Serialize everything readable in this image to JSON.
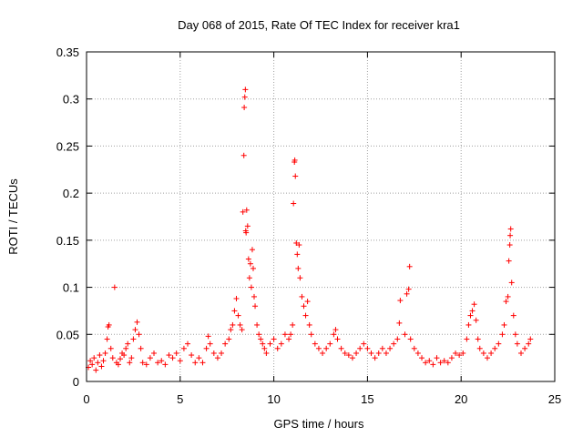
{
  "chart_data": {
    "type": "scatter",
    "title": "Day 068 of 2015, Rate Of TEC Index for receiver kra1",
    "xlabel": "GPS time / hours",
    "ylabel": "ROTI / TECUs",
    "xlim": [
      0,
      25
    ],
    "ylim": [
      0,
      0.35
    ],
    "xticks": [
      0,
      5,
      10,
      15,
      20,
      25
    ],
    "xtick_labels": [
      "0",
      "5",
      "10",
      "15",
      "20",
      "25"
    ],
    "yticks": [
      0,
      0.05,
      0.1,
      0.15,
      0.2,
      0.25,
      0.3,
      0.35
    ],
    "ytick_labels": [
      "0",
      "0.05",
      "0.1",
      "0.15",
      "0.2",
      "0.25",
      "0.3",
      "0.35"
    ],
    "grid": true,
    "marker": "+",
    "series_color": "#ff0000",
    "series": [
      {
        "name": "ROTI",
        "points": [
          [
            0.1,
            0.015
          ],
          [
            0.2,
            0.022
          ],
          [
            0.3,
            0.018
          ],
          [
            0.4,
            0.025
          ],
          [
            0.5,
            0.012
          ],
          [
            0.6,
            0.02
          ],
          [
            0.7,
            0.028
          ],
          [
            0.8,
            0.016
          ],
          [
            0.9,
            0.022
          ],
          [
            1.0,
            0.03
          ],
          [
            1.1,
            0.045
          ],
          [
            1.15,
            0.058
          ],
          [
            1.2,
            0.06
          ],
          [
            1.3,
            0.035
          ],
          [
            1.4,
            0.025
          ],
          [
            1.5,
            0.1
          ],
          [
            1.6,
            0.02
          ],
          [
            1.7,
            0.018
          ],
          [
            1.8,
            0.024
          ],
          [
            1.9,
            0.03
          ],
          [
            2.0,
            0.028
          ],
          [
            2.1,
            0.035
          ],
          [
            2.2,
            0.04
          ],
          [
            2.3,
            0.02
          ],
          [
            2.4,
            0.025
          ],
          [
            2.5,
            0.045
          ],
          [
            2.6,
            0.055
          ],
          [
            2.7,
            0.063
          ],
          [
            2.8,
            0.05
          ],
          [
            2.9,
            0.035
          ],
          [
            3.0,
            0.02
          ],
          [
            3.2,
            0.018
          ],
          [
            3.4,
            0.025
          ],
          [
            3.6,
            0.03
          ],
          [
            3.8,
            0.02
          ],
          [
            4.0,
            0.022
          ],
          [
            4.2,
            0.018
          ],
          [
            4.4,
            0.028
          ],
          [
            4.6,
            0.025
          ],
          [
            4.8,
            0.03
          ],
          [
            5.0,
            0.022
          ],
          [
            5.2,
            0.035
          ],
          [
            5.4,
            0.04
          ],
          [
            5.6,
            0.028
          ],
          [
            5.8,
            0.02
          ],
          [
            6.0,
            0.025
          ],
          [
            6.2,
            0.02
          ],
          [
            6.4,
            0.035
          ],
          [
            6.5,
            0.048
          ],
          [
            6.6,
            0.04
          ],
          [
            6.8,
            0.03
          ],
          [
            7.0,
            0.025
          ],
          [
            7.2,
            0.03
          ],
          [
            7.4,
            0.04
          ],
          [
            7.6,
            0.045
          ],
          [
            7.7,
            0.055
          ],
          [
            7.8,
            0.06
          ],
          [
            7.9,
            0.075
          ],
          [
            8.0,
            0.088
          ],
          [
            8.1,
            0.07
          ],
          [
            8.2,
            0.06
          ],
          [
            8.3,
            0.055
          ],
          [
            8.35,
            0.18
          ],
          [
            8.4,
            0.24
          ],
          [
            8.42,
            0.291
          ],
          [
            8.45,
            0.302
          ],
          [
            8.48,
            0.31
          ],
          [
            8.5,
            0.16
          ],
          [
            8.52,
            0.158
          ],
          [
            8.55,
            0.182
          ],
          [
            8.6,
            0.165
          ],
          [
            8.65,
            0.13
          ],
          [
            8.7,
            0.11
          ],
          [
            8.75,
            0.125
          ],
          [
            8.8,
            0.1
          ],
          [
            8.85,
            0.14
          ],
          [
            8.9,
            0.12
          ],
          [
            8.95,
            0.09
          ],
          [
            9.0,
            0.08
          ],
          [
            9.1,
            0.06
          ],
          [
            9.2,
            0.05
          ],
          [
            9.3,
            0.045
          ],
          [
            9.4,
            0.04
          ],
          [
            9.5,
            0.035
          ],
          [
            9.6,
            0.03
          ],
          [
            9.8,
            0.04
          ],
          [
            10.0,
            0.045
          ],
          [
            10.2,
            0.035
          ],
          [
            10.4,
            0.04
          ],
          [
            10.6,
            0.05
          ],
          [
            10.8,
            0.045
          ],
          [
            10.9,
            0.05
          ],
          [
            11.0,
            0.06
          ],
          [
            11.05,
            0.189
          ],
          [
            11.1,
            0.233
          ],
          [
            11.12,
            0.235
          ],
          [
            11.15,
            0.218
          ],
          [
            11.2,
            0.147
          ],
          [
            11.25,
            0.135
          ],
          [
            11.3,
            0.12
          ],
          [
            11.35,
            0.145
          ],
          [
            11.4,
            0.11
          ],
          [
            11.5,
            0.09
          ],
          [
            11.6,
            0.08
          ],
          [
            11.7,
            0.07
          ],
          [
            11.8,
            0.085
          ],
          [
            11.9,
            0.06
          ],
          [
            12.0,
            0.05
          ],
          [
            12.2,
            0.04
          ],
          [
            12.4,
            0.035
          ],
          [
            12.6,
            0.03
          ],
          [
            12.8,
            0.035
          ],
          [
            13.0,
            0.04
          ],
          [
            13.2,
            0.05
          ],
          [
            13.3,
            0.055
          ],
          [
            13.4,
            0.045
          ],
          [
            13.6,
            0.035
          ],
          [
            13.8,
            0.03
          ],
          [
            14.0,
            0.028
          ],
          [
            14.2,
            0.025
          ],
          [
            14.4,
            0.03
          ],
          [
            14.6,
            0.035
          ],
          [
            14.8,
            0.04
          ],
          [
            15.0,
            0.035
          ],
          [
            15.2,
            0.03
          ],
          [
            15.4,
            0.025
          ],
          [
            15.6,
            0.03
          ],
          [
            15.8,
            0.035
          ],
          [
            16.0,
            0.03
          ],
          [
            16.2,
            0.035
          ],
          [
            16.4,
            0.04
          ],
          [
            16.6,
            0.045
          ],
          [
            16.7,
            0.062
          ],
          [
            16.75,
            0.086
          ],
          [
            17.0,
            0.05
          ],
          [
            17.1,
            0.093
          ],
          [
            17.2,
            0.098
          ],
          [
            17.25,
            0.122
          ],
          [
            17.3,
            0.045
          ],
          [
            17.5,
            0.035
          ],
          [
            17.7,
            0.03
          ],
          [
            17.9,
            0.025
          ],
          [
            18.1,
            0.02
          ],
          [
            18.3,
            0.022
          ],
          [
            18.5,
            0.018
          ],
          [
            18.7,
            0.025
          ],
          [
            18.9,
            0.02
          ],
          [
            19.1,
            0.022
          ],
          [
            19.3,
            0.02
          ],
          [
            19.5,
            0.025
          ],
          [
            19.7,
            0.03
          ],
          [
            19.9,
            0.028
          ],
          [
            20.1,
            0.03
          ],
          [
            20.3,
            0.045
          ],
          [
            20.4,
            0.06
          ],
          [
            20.5,
            0.07
          ],
          [
            20.6,
            0.075
          ],
          [
            20.7,
            0.082
          ],
          [
            20.8,
            0.065
          ],
          [
            20.9,
            0.045
          ],
          [
            21.0,
            0.035
          ],
          [
            21.2,
            0.03
          ],
          [
            21.4,
            0.025
          ],
          [
            21.6,
            0.03
          ],
          [
            21.8,
            0.035
          ],
          [
            22.0,
            0.04
          ],
          [
            22.2,
            0.05
          ],
          [
            22.3,
            0.06
          ],
          [
            22.4,
            0.085
          ],
          [
            22.5,
            0.09
          ],
          [
            22.55,
            0.128
          ],
          [
            22.6,
            0.145
          ],
          [
            22.62,
            0.155
          ],
          [
            22.65,
            0.162
          ],
          [
            22.7,
            0.105
          ],
          [
            22.8,
            0.07
          ],
          [
            22.9,
            0.05
          ],
          [
            23.0,
            0.04
          ],
          [
            23.2,
            0.03
          ],
          [
            23.4,
            0.035
          ],
          [
            23.6,
            0.04
          ],
          [
            23.7,
            0.045
          ]
        ]
      }
    ]
  }
}
